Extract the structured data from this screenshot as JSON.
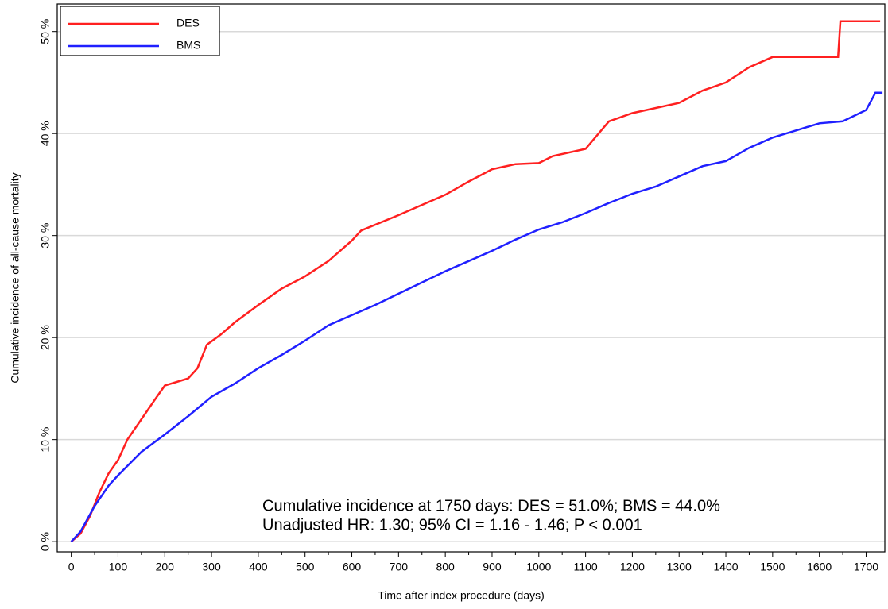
{
  "chart_data": {
    "type": "line",
    "xlabel": "Time after index procedure (days)",
    "ylabel": "Cumulative incidence of all-cause mortality",
    "xlim": [
      -30,
      1740
    ],
    "ylim": [
      -1,
      52.7
    ],
    "xticks": [
      0,
      100,
      200,
      300,
      400,
      500,
      600,
      700,
      800,
      900,
      1000,
      1100,
      1200,
      1300,
      1400,
      1500,
      1600,
      1700
    ],
    "yticks": [
      {
        "value": 0,
        "label": "0 %"
      },
      {
        "value": 10,
        "label": "10 %"
      },
      {
        "value": 20,
        "label": "20 %"
      },
      {
        "value": 30,
        "label": "30 %"
      },
      {
        "value": 40,
        "label": "40 %"
      },
      {
        "value": 50,
        "label": "50 %"
      }
    ],
    "grid": true,
    "legend": "upper left",
    "annotations": [
      "Cumulative incidence at 1750 days: DES = 51.0%; BMS = 44.0%",
      "Unadjusted HR: 1.30; 95% CI = 1.16 - 1.46; P < 0.001"
    ],
    "series": [
      {
        "name": "DES",
        "color": "#ff2020",
        "x": [
          0,
          20,
          40,
          60,
          80,
          100,
          120,
          150,
          180,
          200,
          250,
          270,
          290,
          320,
          350,
          400,
          450,
          500,
          550,
          600,
          620,
          700,
          750,
          800,
          850,
          900,
          950,
          1000,
          1030,
          1100,
          1150,
          1200,
          1300,
          1350,
          1400,
          1450,
          1500,
          1640,
          1645,
          1730
        ],
        "values": [
          0,
          0.8,
          2.5,
          4.8,
          6.7,
          8,
          10,
          12,
          14,
          15.3,
          16,
          17,
          19.3,
          20.3,
          21.5,
          23.2,
          24.8,
          26,
          27.5,
          29.5,
          30.5,
          32,
          33,
          34,
          35.3,
          36.5,
          37,
          37.1,
          37.8,
          38.5,
          41.2,
          42,
          43,
          44.2,
          45,
          46.5,
          47.5,
          47.5,
          51,
          51
        ]
      },
      {
        "name": "BMS",
        "color": "#2020ff",
        "x": [
          0,
          20,
          50,
          80,
          100,
          150,
          200,
          250,
          300,
          350,
          400,
          450,
          500,
          550,
          600,
          650,
          700,
          750,
          800,
          850,
          900,
          950,
          1000,
          1050,
          1100,
          1150,
          1200,
          1250,
          1300,
          1350,
          1400,
          1450,
          1500,
          1550,
          1600,
          1650,
          1700,
          1720,
          1735
        ],
        "values": [
          0,
          1,
          3.5,
          5.5,
          6.5,
          8.8,
          10.5,
          12.3,
          14.2,
          15.5,
          17,
          18.3,
          19.7,
          21.2,
          22.2,
          23.2,
          24.3,
          25.4,
          26.5,
          27.5,
          28.5,
          29.6,
          30.6,
          31.3,
          32.2,
          33.2,
          34.1,
          34.8,
          35.8,
          36.8,
          37.3,
          38.6,
          39.6,
          40.3,
          41,
          41.2,
          42.3,
          44,
          44
        ]
      }
    ]
  }
}
